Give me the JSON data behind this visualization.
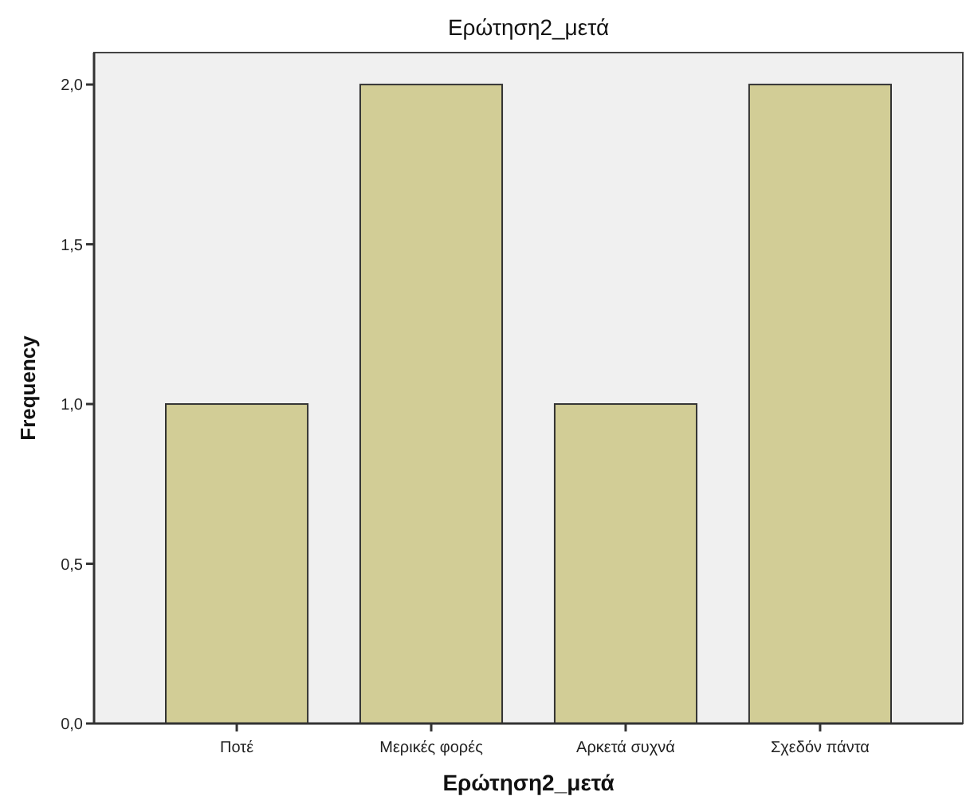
{
  "chart_data": {
    "type": "bar",
    "title": "Ερώτηση2_μετά",
    "xlabel": "Ερώτηση2_μετά",
    "ylabel": "Frequency",
    "categories": [
      "Ποτέ",
      "Μερικές φορές",
      "Αρκετά συχνά",
      "Σχεδόν πάντα"
    ],
    "values": [
      1,
      2,
      1,
      2
    ],
    "color": "#d2cd96",
    "ylim": [
      0,
      2.1
    ],
    "yticks": [
      {
        "value": 0,
        "label": "0,0"
      },
      {
        "value": 0.5,
        "label": "0,5"
      },
      {
        "value": 1,
        "label": "1,0"
      },
      {
        "value": 1.5,
        "label": "1,5"
      },
      {
        "value": 2,
        "label": "2,0"
      }
    ],
    "grid": false
  }
}
